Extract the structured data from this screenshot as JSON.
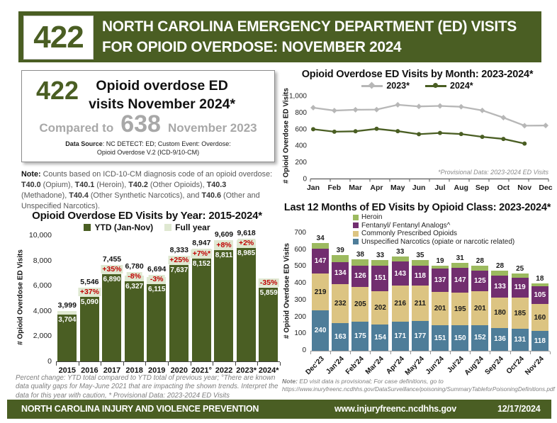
{
  "header": {
    "badge": "422",
    "title_line1": "NORTH CAROLINA EMERGENCY DEPARTMENT (ED) VISITS",
    "title_line2": "FOR OPIOID OVERDOSE:  NOVEMBER 2024"
  },
  "summary_box": {
    "count": "422",
    "headline_line1": "Opioid overdose ED",
    "headline_line2": "visits November 2024*",
    "compared_prefix": "Compared to",
    "compared_count": "638",
    "compared_suffix": "November 2023",
    "data_source_label": "Data Source",
    "data_source_rest": ": NC DETECT: ED; Custom Event: Overdose:",
    "data_source_line2": "Opioid Overdose V.2 (ICD-9/10-CM)"
  },
  "note": {
    "label": "Note:",
    "segments": [
      {
        "b": 0,
        "t": " Counts based on ICD-10-CM diagnosis code of an opioid overdose: "
      },
      {
        "b": 1,
        "t": "T40.0"
      },
      {
        "b": 0,
        "t": " (Opium), "
      },
      {
        "b": 1,
        "t": "T40.1"
      },
      {
        "b": 0,
        "t": " (Heroin), "
      },
      {
        "b": 1,
        "t": "T40.2"
      },
      {
        "b": 0,
        "t": " (Other Opioids), "
      },
      {
        "b": 1,
        "t": "T40.3"
      },
      {
        "b": 0,
        "t": " (Methadone), "
      },
      {
        "b": 1,
        "t": "T40.4"
      },
      {
        "b": 0,
        "t": " (Other Synthetic Narcotics), and "
      },
      {
        "b": 1,
        "t": "T40.6"
      },
      {
        "b": 0,
        "t": " (Other and Unspecified Narcotics)."
      }
    ]
  },
  "colors": {
    "brand_green": "#4a5e23",
    "light_green": "#dfe8d1",
    "percent_red": "#c00000",
    "compare_gray": "#a8a8a8",
    "heroin_green": "#9cba5f",
    "fentanyl_purple": "#722e6f",
    "prescribed_tan": "#dcc482",
    "unspecified_blue": "#4e7d99",
    "line_gray": "#b7b7b7"
  },
  "chart_data": [
    {
      "id": "visits_by_year",
      "type": "bar",
      "title": "Opioid Overdose ED Visits by Year: 2015-2024*",
      "ylabel": "# Opioid Overdose ED Visits",
      "ylim": [
        0,
        10000
      ],
      "yticks": [
        "10,000",
        "8,000",
        "6,000",
        "4,000",
        "2,000",
        "0"
      ],
      "legend": [
        {
          "label": "YTD (Jan-Nov)",
          "color": "#4a5e23"
        },
        {
          "label": "Full year",
          "color": "#dfe8d1"
        }
      ],
      "categories": [
        "2015",
        "2016",
        "2017",
        "2018",
        "2019",
        "2020",
        "2021°",
        "2022",
        "2023*",
        "2024*"
      ],
      "series": [
        {
          "name": "YTD (Jan-Nov)",
          "values": [
            3704,
            5090,
            6890,
            6327,
            6115,
            7637,
            8152,
            8811,
            8985,
            5859
          ],
          "labels": [
            "3,704",
            "5,090",
            "6,890",
            "6,327",
            "6,115",
            "7,637",
            "8,152",
            "8,811",
            "8,985",
            "5,859"
          ]
        },
        {
          "name": "Full year",
          "values": [
            3999,
            5546,
            7455,
            6780,
            6694,
            8333,
            8947,
            9609,
            9618,
            null
          ],
          "labels": [
            "3,999",
            "5,546",
            "7,455",
            "6,780",
            "6,694",
            "8,333",
            "8,947",
            "9,609",
            "9,618",
            ""
          ]
        }
      ],
      "pct_change_labels": [
        "",
        "+37%",
        "+35%",
        "-8%",
        "-3%",
        "+25%",
        "+7%*",
        "+8%",
        "+2%",
        "-35%"
      ],
      "footnote": "Percent change: YTD total compared to YTD total of previous year; °There are known data quality gaps for May-June 2021 that are impacting the shown trends. Interpret the data for this year with caution, * Provisional Data: 2023-2024 ED Visits"
    },
    {
      "id": "visits_by_month",
      "type": "line",
      "title": "Opioid Overdose ED Visits by Month: 2023-2024*",
      "ylabel": "# Opioid Overdose ED Visits",
      "ylim": [
        0,
        1000
      ],
      "yticks": [
        "1,000",
        "800",
        "600",
        "400",
        "200",
        "0"
      ],
      "categories": [
        "Jan",
        "Feb",
        "Mar",
        "Apr",
        "May",
        "Jun",
        "Jul",
        "Aug",
        "Sep",
        "Oct",
        "Nov",
        "Dec"
      ],
      "series": [
        {
          "name": "2023*",
          "color": "#b7b7b7",
          "marker": "diamond",
          "values": [
            855,
            820,
            830,
            832,
            890,
            870,
            876,
            866,
            822,
            735,
            638,
            640
          ]
        },
        {
          "name": "2024*",
          "color": "#4a5e23",
          "marker": "circle",
          "values": [
            595,
            565,
            570,
            600,
            572,
            535,
            550,
            537,
            503,
            478,
            422,
            null
          ]
        }
      ],
      "annotation": "*Provisional Data: 2023-2024 ED Visits"
    },
    {
      "id": "visits_by_opioid_class",
      "type": "stacked-bar",
      "title": "Last 12 Months of ED Visits by Opioid Class: 2023-2024*",
      "ylabel": "# Opioid Overdose ED Visits",
      "ylim": [
        0,
        700
      ],
      "yticks": [
        "700",
        "600",
        "500",
        "400",
        "300",
        "200",
        "100",
        "0"
      ],
      "categories": [
        "Dec'23",
        "Jan'24",
        "Feb'24",
        "Mar'24",
        "Apr'24",
        "May'24",
        "Jun'24",
        "Jul'24",
        "Aug'24",
        "Sep'24",
        "Oct'24",
        "Nov'24"
      ],
      "legend_order": [
        "Heroin",
        "Fentanyl/ Fentanyl Analogs^",
        "Commonly Prescribed Opioids",
        "Unspecified Narcotics (opiate or narcotic related)"
      ],
      "series": [
        {
          "name": "Unspecified Narcotics (opiate or narcotic related)",
          "color": "#4e7d99",
          "label_color": "#ffffff",
          "values": [
            240,
            163,
            175,
            154,
            171,
            177,
            151,
            150,
            152,
            136,
            131,
            118
          ]
        },
        {
          "name": "Commonly Prescribed Opioids",
          "color": "#dcc482",
          "label_color": "#1a1a1a",
          "values": [
            219,
            232,
            205,
            202,
            216,
            211,
            201,
            195,
            201,
            180,
            185,
            160
          ]
        },
        {
          "name": "Fentanyl/ Fentanyl Analogs^",
          "color": "#722e6f",
          "label_color": "#ffffff",
          "values": [
            147,
            134,
            126,
            151,
            143,
            118,
            137,
            147,
            125,
            133,
            119,
            105
          ]
        },
        {
          "name": "Heroin",
          "color": "#9cba5f",
          "label_color": "#1a1a1a",
          "values": [
            34,
            39,
            38,
            33,
            33,
            35,
            19,
            31,
            28,
            28,
            25,
            18
          ]
        }
      ],
      "note_label": "Note:",
      "note_text": " ED visit data is provisional; For case definitions, go to",
      "note_url": "https://www.inuryfreenc.ncdhhs.gov/DataSurveillance/poisoning/SummaryTableforPoisoningDefinitions.pdf"
    }
  ],
  "footer": {
    "org": "NORTH CAROLINA INJURY AND VIOLENCE PREVENTION",
    "url": "www.injuryfreenc.ncdhhs.gov",
    "date": "12/17/2024"
  }
}
